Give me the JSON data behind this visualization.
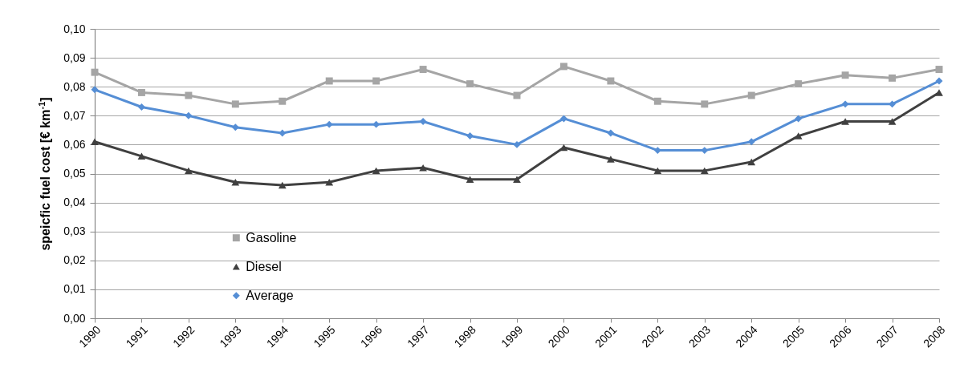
{
  "chart_data": {
    "type": "line",
    "ylabel": "speicfic fuel cost [€ km$^{-1}$]",
    "categories": [
      "1990",
      "1991",
      "1992",
      "1993",
      "1994",
      "1995",
      "1996",
      "1997",
      "1998",
      "1999",
      "2000",
      "2001",
      "2002",
      "2003",
      "2004",
      "2005",
      "2006",
      "2007",
      "2008"
    ],
    "ylim": [
      0,
      0.1
    ],
    "yticks": [
      {
        "value": 0,
        "label": "0,00"
      },
      {
        "value": 0.01,
        "label": "0,01"
      },
      {
        "value": 0.02,
        "label": "0,02"
      },
      {
        "value": 0.03,
        "label": "0,03"
      },
      {
        "value": 0.04,
        "label": "0,04"
      },
      {
        "value": 0.05,
        "label": "0,05"
      },
      {
        "value": 0.06,
        "label": "0,06"
      },
      {
        "value": 0.07,
        "label": "0,07"
      },
      {
        "value": 0.08,
        "label": "0,08"
      },
      {
        "value": 0.09,
        "label": "0,09"
      },
      {
        "value": 0.1,
        "label": "0,10"
      }
    ],
    "grid": "y",
    "legend": "bottom left",
    "series": [
      {
        "name": "Gasoline",
        "color": "#a5a5a5",
        "marker": "square",
        "values": [
          0.085,
          0.078,
          0.077,
          0.074,
          0.075,
          0.082,
          0.082,
          0.086,
          0.081,
          0.077,
          0.087,
          0.082,
          0.075,
          0.074,
          0.077,
          0.081,
          0.084,
          0.083,
          0.086
        ]
      },
      {
        "name": "Diesel",
        "color": "#404040",
        "marker": "triangle",
        "values": [
          0.061,
          0.056,
          0.051,
          0.047,
          0.046,
          0.047,
          0.051,
          0.052,
          0.048,
          0.048,
          0.059,
          0.055,
          0.051,
          0.051,
          0.054,
          0.063,
          0.068,
          0.068,
          0.078
        ]
      },
      {
        "name": "Average",
        "color": "#558ed5",
        "marker": "diamond",
        "values": [
          0.079,
          0.073,
          0.07,
          0.066,
          0.064,
          0.067,
          0.067,
          0.068,
          0.063,
          0.06,
          0.069,
          0.064,
          0.058,
          0.058,
          0.061,
          0.069,
          0.074,
          0.074,
          0.082
        ]
      }
    ]
  }
}
